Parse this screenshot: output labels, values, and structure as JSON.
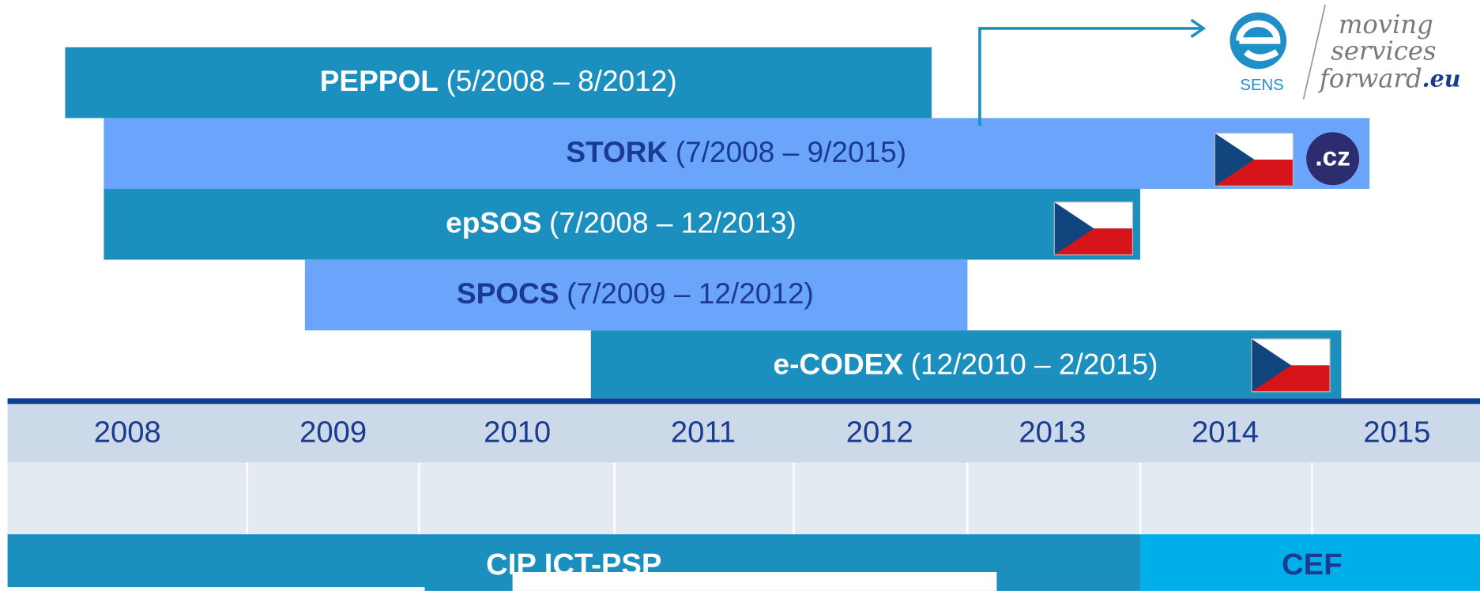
{
  "projects": [
    {
      "name": "PEPPOL",
      "period": "(5/2008 – 8/2012)"
    },
    {
      "name": "STORK",
      "period": "(7/2008 – 9/2015)"
    },
    {
      "name": "epSOS",
      "period": "(7/2008 – 12/2013)"
    },
    {
      "name": "SPOCS",
      "period": "(7/2009 – 12/2012)"
    },
    {
      "name": "e-CODEX",
      "period": "(12/2010 – 2/2015)"
    }
  ],
  "years": [
    "2008",
    "2009",
    "2010",
    "2011",
    "2012",
    "2013",
    "2014",
    "2015"
  ],
  "programmes": [
    "CIP ICT-PSP",
    "CEF"
  ],
  "logo": {
    "brand": "SENS",
    "line1": "moving",
    "line2": "services",
    "line3": "forward",
    "domain": ".eu"
  },
  "cz_badge": ".cz"
}
